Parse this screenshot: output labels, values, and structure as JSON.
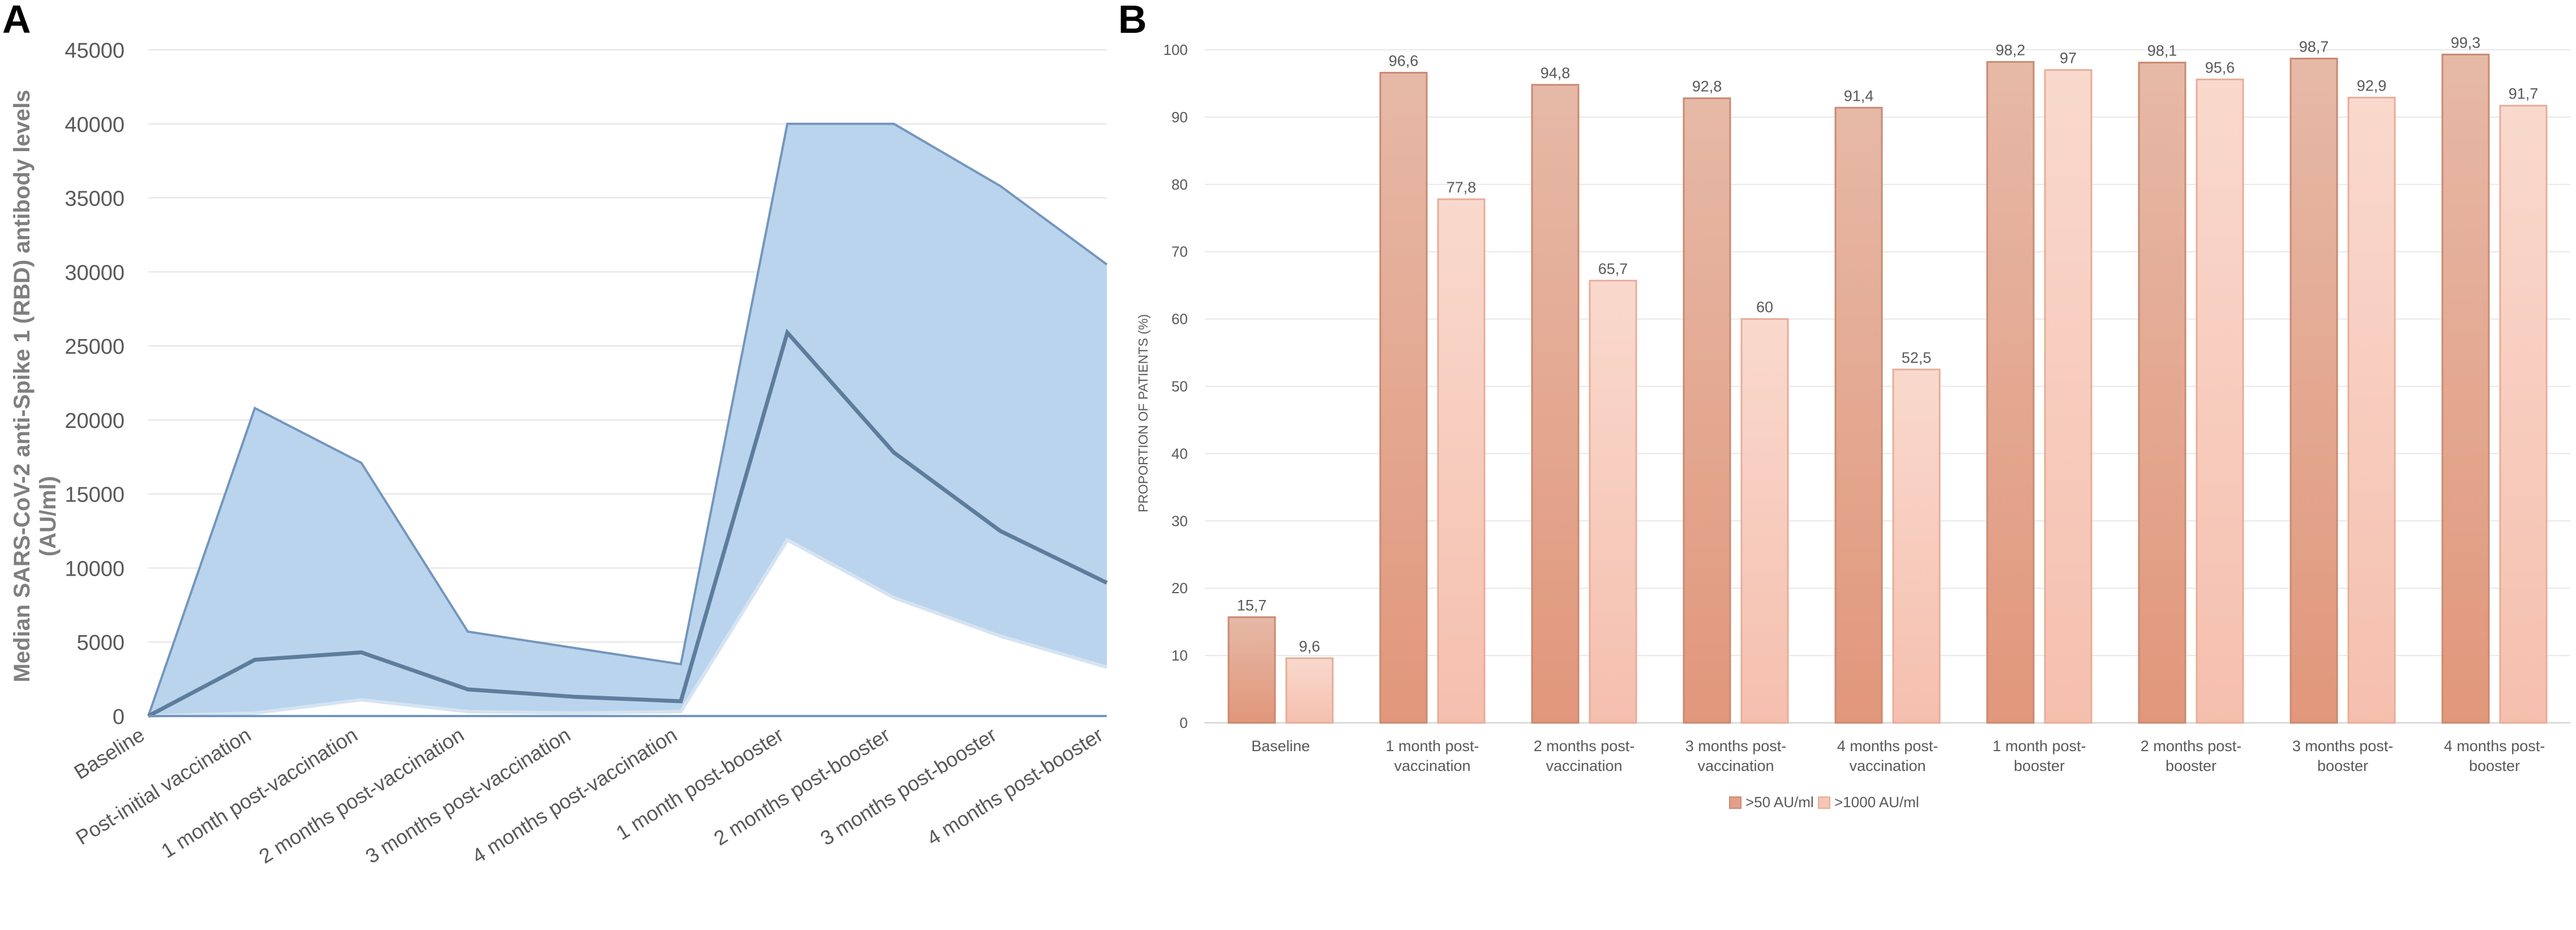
{
  "panel_a_label": "A",
  "panel_b_label": "B",
  "chart_data": [
    {
      "type": "area",
      "panel": "A",
      "title": "",
      "xlabel": "",
      "ylabel_line1": "Median  SARS-CoV-2  anti-Spike  1 (RBD)  antibody  levels",
      "ylabel_line2": "(AU/ml)",
      "ylim": [
        0,
        45000
      ],
      "yticks": [
        0,
        5000,
        10000,
        15000,
        20000,
        25000,
        30000,
        35000,
        40000,
        45000
      ],
      "categories": [
        "Baseline",
        "Post-initial  vaccination",
        "1 month post-vaccination",
        "2 months post-vaccination",
        "3 months post-vaccination",
        "4 months post-vaccination",
        "1 month post-booster",
        "2 months post-booster",
        "3 months post-booster",
        "4 months post-booster"
      ],
      "series": [
        {
          "name": "upper",
          "values": [
            0,
            20800,
            17100,
            5700,
            4600,
            3500,
            40000,
            40000,
            35800,
            30500
          ]
        },
        {
          "name": "median",
          "values": [
            0,
            3800,
            4300,
            1800,
            1300,
            1000,
            25900,
            17800,
            12500,
            9000
          ]
        },
        {
          "name": "lower",
          "values": [
            0,
            200,
            1100,
            300,
            200,
            300,
            11900,
            8000,
            5400,
            3300
          ]
        }
      ],
      "colors": {
        "band": "#bad4ed",
        "edge": "#7396bd",
        "median": "#5e7c9c",
        "lower_fill": "#ffffff"
      }
    },
    {
      "type": "bar",
      "panel": "B",
      "title": "",
      "xlabel": "",
      "ylabel": "PROPORTION OF PATIENTS (%)",
      "ylim": [
        0,
        100
      ],
      "yticks": [
        0,
        10,
        20,
        30,
        40,
        50,
        60,
        70,
        80,
        90,
        100
      ],
      "categories": [
        [
          "Baseline"
        ],
        [
          "1 month post-",
          "vaccination"
        ],
        [
          "2 months post-",
          "vaccination"
        ],
        [
          "3 months post-",
          "vaccination"
        ],
        [
          "4 months post-",
          "vaccination"
        ],
        [
          "1 month post-",
          "booster"
        ],
        [
          "2 months post-",
          "booster"
        ],
        [
          "3 months post-",
          "booster"
        ],
        [
          "4 months post-",
          "booster"
        ]
      ],
      "series": [
        {
          "name": ">50 AU/ml",
          "values": [
            15.7,
            96.6,
            94.8,
            92.8,
            91.4,
            98.2,
            98.1,
            98.7,
            99.3
          ],
          "labels": [
            "15,7",
            "96,6",
            "94,8",
            "92,8",
            "91,4",
            "98,2",
            "98,1",
            "98,7",
            "99,3"
          ],
          "color": "#e3a088",
          "color_top": "#e8b6a2",
          "edge": "#c98a72"
        },
        {
          "name": ">1000 AU/ml",
          "values": [
            9.6,
            77.8,
            65.7,
            60,
            52.5,
            97,
            95.6,
            92.9,
            91.7
          ],
          "labels": [
            "9,6",
            "77,8",
            "65,7",
            "60",
            "52,5",
            "97",
            "95,6",
            "92,9",
            "91,7"
          ],
          "color": "#f6c5b4",
          "color_top": "#f9d8cc",
          "edge": "#e7ad98"
        }
      ],
      "legend": {
        "position": "bottom-center",
        "labels": [
          ">50 AU/ml",
          ">1000 AU/ml"
        ]
      }
    }
  ]
}
